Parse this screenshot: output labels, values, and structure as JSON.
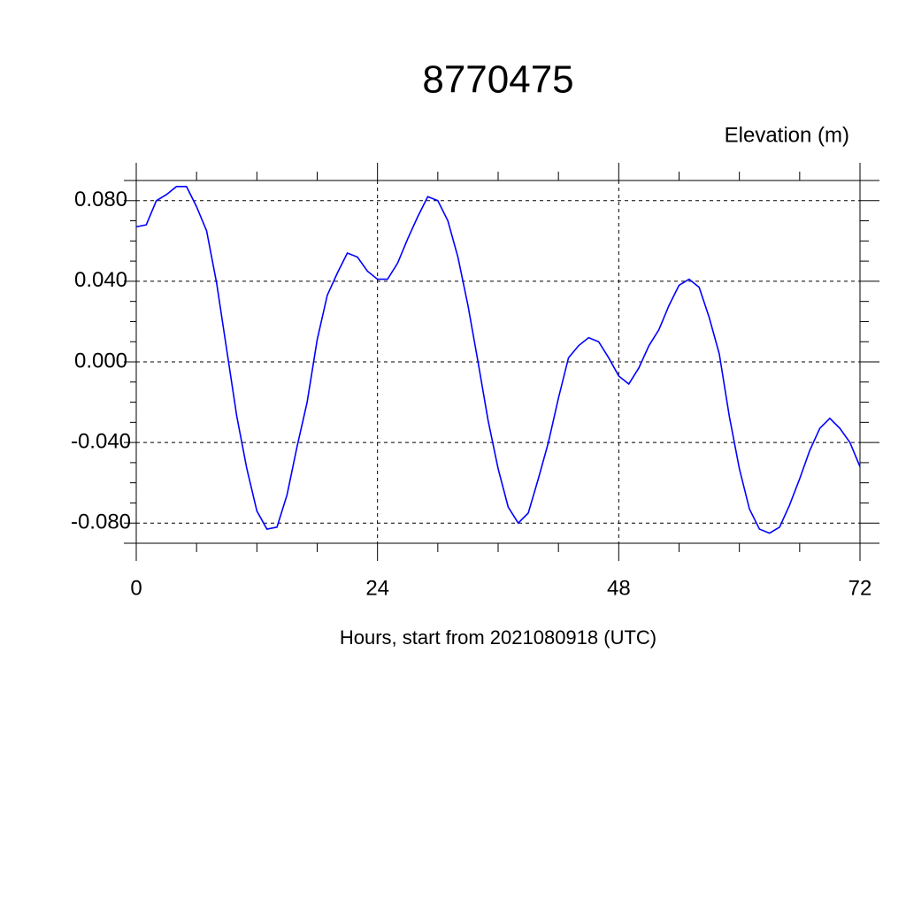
{
  "chart_data": {
    "type": "line",
    "title": "8770475",
    "ylabel": "Elevation (m)",
    "xlabel": "Hours, start from 2021080918 (UTC)",
    "x": [
      0,
      1,
      2,
      3,
      4,
      5,
      6,
      7,
      8,
      9,
      10,
      11,
      12,
      13,
      14,
      15,
      16,
      17,
      18,
      19,
      20,
      21,
      22,
      23,
      24,
      25,
      26,
      27,
      28,
      29,
      30,
      31,
      32,
      33,
      34,
      35,
      36,
      37,
      38,
      39,
      40,
      41,
      42,
      43,
      44,
      45,
      46,
      47,
      48,
      49,
      50,
      51,
      52,
      53,
      54,
      55,
      56,
      57,
      58,
      59,
      60,
      61,
      62,
      63,
      64,
      65,
      66,
      67,
      68,
      69,
      70,
      71,
      72
    ],
    "series": [
      {
        "name": "Elevation",
        "color": "#0000ff",
        "values": [
          0.067,
          0.068,
          0.08,
          0.083,
          0.087,
          0.087,
          0.077,
          0.065,
          0.039,
          0.006,
          -0.027,
          -0.053,
          -0.074,
          -0.083,
          -0.082,
          -0.066,
          -0.042,
          -0.02,
          0.011,
          0.033,
          0.044,
          0.054,
          0.052,
          0.045,
          0.041,
          0.041,
          0.049,
          0.061,
          0.072,
          0.082,
          0.08,
          0.07,
          0.052,
          0.028,
          0.0,
          -0.029,
          -0.053,
          -0.072,
          -0.08,
          -0.075,
          -0.058,
          -0.04,
          -0.018,
          0.002,
          0.008,
          0.012,
          0.01,
          0.002,
          -0.007,
          -0.011,
          -0.003,
          0.008,
          0.016,
          0.028,
          0.038,
          0.041,
          0.037,
          0.022,
          0.004,
          -0.027,
          -0.053,
          -0.073,
          -0.083,
          -0.085,
          -0.082,
          -0.071,
          -0.058,
          -0.044,
          -0.033,
          -0.028,
          -0.033,
          -0.04,
          -0.052
        ]
      }
    ],
    "xlim": [
      0,
      72
    ],
    "xticks": [
      0,
      24,
      48,
      72
    ],
    "ylim": [
      -0.09,
      0.09
    ],
    "yticks": [
      {
        "value": -0.08,
        "label": "-0.080"
      },
      {
        "value": -0.04,
        "label": "-0.040"
      },
      {
        "value": 0,
        "label": "0.000"
      },
      {
        "value": 0.04,
        "label": "0.040"
      },
      {
        "value": 0.08,
        "label": "0.080"
      }
    ],
    "grid": true
  }
}
